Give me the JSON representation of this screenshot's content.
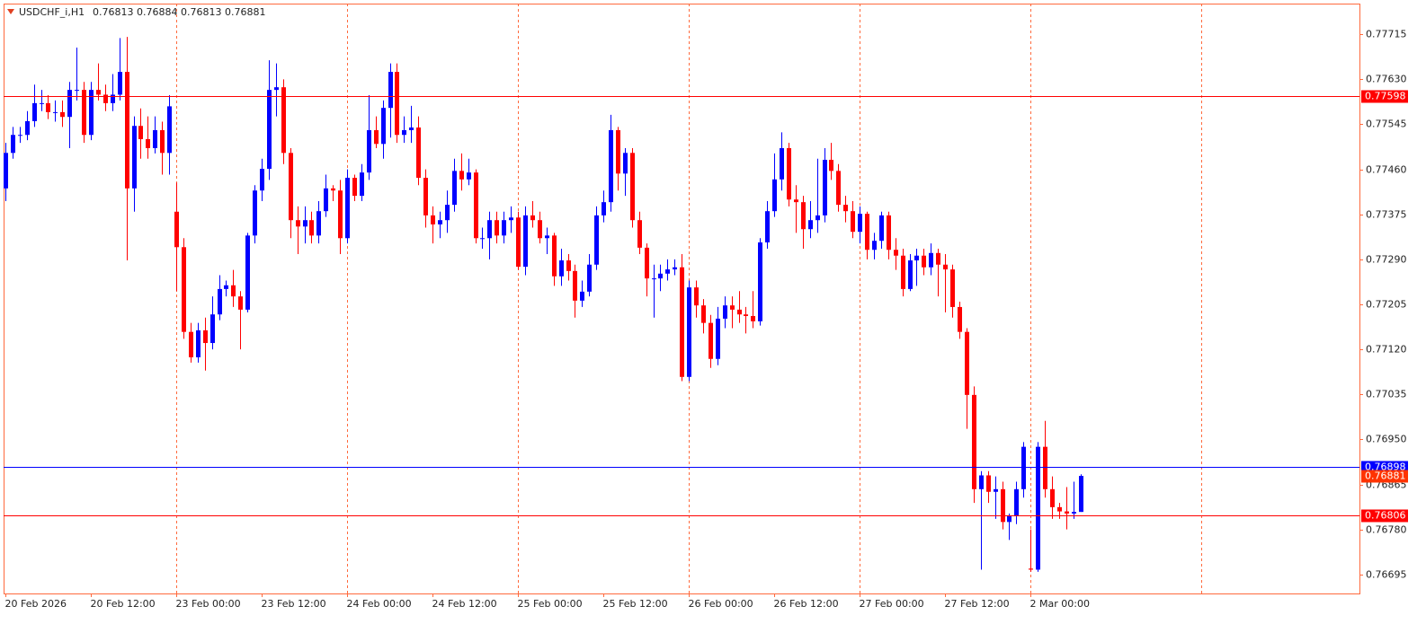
{
  "chart_data": {
    "type": "candlestick",
    "title": "USDCHF_i,H1",
    "bull_color": "#0000ff",
    "bear_color": "#ff0000",
    "frame_color": "#ff6a3d",
    "ylim": [
      0.76659,
      0.77773
    ],
    "yticks": [
      {
        "value": 0.77715,
        "label": "0.77715"
      },
      {
        "value": 0.7763,
        "label": "0.77630"
      },
      {
        "value": 0.77545,
        "label": "0.77545"
      },
      {
        "value": 0.7746,
        "label": "0.77460"
      },
      {
        "value": 0.77375,
        "label": "0.77375"
      },
      {
        "value": 0.7729,
        "label": "0.77290"
      },
      {
        "value": 0.77205,
        "label": "0.77205"
      },
      {
        "value": 0.7712,
        "label": "0.77120"
      },
      {
        "value": 0.77035,
        "label": "0.77035"
      },
      {
        "value": 0.7695,
        "label": "0.76950"
      },
      {
        "value": 0.76865,
        "label": "0.76865"
      },
      {
        "value": 0.7678,
        "label": "0.76780"
      },
      {
        "value": 0.76695,
        "label": "0.76695"
      }
    ],
    "xlim": [
      -0.25,
      190.2
    ],
    "xticks": [
      {
        "value": 0,
        "label": "20 Feb 2026"
      },
      {
        "value": 12,
        "label": "20 Feb 12:00"
      },
      {
        "value": 24,
        "label": "23 Feb 00:00"
      },
      {
        "value": 36,
        "label": "23 Feb 12:00"
      },
      {
        "value": 48,
        "label": "24 Feb 00:00"
      },
      {
        "value": 60,
        "label": "24 Feb 12:00"
      },
      {
        "value": 72,
        "label": "25 Feb 00:00"
      },
      {
        "value": 84,
        "label": "25 Feb 12:00"
      },
      {
        "value": 96,
        "label": "26 Feb 00:00"
      },
      {
        "value": 108,
        "label": "26 Feb 12:00"
      },
      {
        "value": 120,
        "label": "27 Feb 00:00"
      },
      {
        "value": 132,
        "label": "27 Feb 12:00"
      },
      {
        "value": 144,
        "label": "2 Mar 00:00"
      }
    ],
    "period_separators": [
      24,
      48,
      72,
      96,
      120,
      144,
      168
    ],
    "levels": [
      {
        "value": 0.77598,
        "color": "#ff0000"
      },
      {
        "value": 0.76898,
        "color": "#0000ff"
      },
      {
        "value": 0.76806,
        "color": "#ff0000"
      }
    ],
    "bid_color": "#ff3300",
    "candles": [
      [
        0.77424,
        0.7751,
        0.774,
        0.77491
      ],
      [
        0.77491,
        0.7754,
        0.7748,
        0.77525
      ],
      [
        0.77525,
        0.7754,
        0.7751,
        0.77525
      ],
      [
        0.77525,
        0.7757,
        0.77515,
        0.77551
      ],
      [
        0.77551,
        0.7762,
        0.7754,
        0.77585
      ],
      [
        0.77585,
        0.7761,
        0.7757,
        0.77585
      ],
      [
        0.77585,
        0.776,
        0.77555,
        0.77568
      ],
      [
        0.77568,
        0.7759,
        0.7755,
        0.77568
      ],
      [
        0.77568,
        0.7759,
        0.7754,
        0.77559
      ],
      [
        0.77559,
        0.77625,
        0.775,
        0.7761
      ],
      [
        0.7761,
        0.7769,
        0.7759,
        0.7761
      ],
      [
        0.7761,
        0.77625,
        0.7751,
        0.77525
      ],
      [
        0.77525,
        0.77625,
        0.77515,
        0.7761
      ],
      [
        0.7761,
        0.7766,
        0.7759,
        0.77601
      ],
      [
        0.77601,
        0.7762,
        0.7757,
        0.77585
      ],
      [
        0.77585,
        0.7764,
        0.7757,
        0.77601
      ],
      [
        0.77601,
        0.77708,
        0.7759,
        0.77644
      ],
      [
        0.77644,
        0.7771,
        0.77288,
        0.77424
      ],
      [
        0.77424,
        0.7756,
        0.7738,
        0.77542
      ],
      [
        0.77542,
        0.77575,
        0.7748,
        0.77517
      ],
      [
        0.77517,
        0.7756,
        0.7748,
        0.775
      ],
      [
        0.775,
        0.7756,
        0.7749,
        0.77534
      ],
      [
        0.77534,
        0.7755,
        0.7745,
        0.77491
      ],
      [
        0.77491,
        0.776,
        0.7745,
        0.77579
      ],
      [
        0.7738,
        0.77435,
        0.7723,
        0.77313
      ],
      [
        0.77313,
        0.7733,
        0.7714,
        0.77153
      ],
      [
        0.77153,
        0.7717,
        0.77095,
        0.77105
      ],
      [
        0.77105,
        0.7717,
        0.77095,
        0.77156
      ],
      [
        0.77156,
        0.7718,
        0.7708,
        0.77132
      ],
      [
        0.77132,
        0.7722,
        0.7712,
        0.77186
      ],
      [
        0.77186,
        0.7726,
        0.77175,
        0.77234
      ],
      [
        0.77234,
        0.7725,
        0.7722,
        0.77241
      ],
      [
        0.77241,
        0.7727,
        0.772,
        0.7722
      ],
      [
        0.7722,
        0.7723,
        0.7712,
        0.77195
      ],
      [
        0.77195,
        0.7734,
        0.7719,
        0.77335
      ],
      [
        0.77335,
        0.7743,
        0.7732,
        0.7742
      ],
      [
        0.7742,
        0.7748,
        0.774,
        0.77461
      ],
      [
        0.77461,
        0.77666,
        0.7744,
        0.7761
      ],
      [
        0.7761,
        0.7766,
        0.7756,
        0.77615
      ],
      [
        0.77615,
        0.7763,
        0.7747,
        0.77491
      ],
      [
        0.77491,
        0.775,
        0.7733,
        0.77364
      ],
      [
        0.77364,
        0.7739,
        0.773,
        0.77352
      ],
      [
        0.77352,
        0.7739,
        0.7732,
        0.77364
      ],
      [
        0.77364,
        0.7738,
        0.7732,
        0.77335
      ],
      [
        0.77335,
        0.774,
        0.7732,
        0.77381
      ],
      [
        0.77381,
        0.7745,
        0.7737,
        0.77424
      ],
      [
        0.77424,
        0.7743,
        0.774,
        0.7742
      ],
      [
        0.7742,
        0.7744,
        0.773,
        0.7733
      ],
      [
        0.7733,
        0.7746,
        0.7732,
        0.77444
      ],
      [
        0.77444,
        0.7745,
        0.774,
        0.7741
      ],
      [
        0.7741,
        0.7747,
        0.774,
        0.77454
      ],
      [
        0.77454,
        0.776,
        0.7744,
        0.77534
      ],
      [
        0.77534,
        0.7756,
        0.775,
        0.77508
      ],
      [
        0.77508,
        0.7759,
        0.7748,
        0.77576
      ],
      [
        0.77576,
        0.7766,
        0.7752,
        0.77644
      ],
      [
        0.77644,
        0.7766,
        0.7751,
        0.77525
      ],
      [
        0.77525,
        0.7756,
        0.7751,
        0.77534
      ],
      [
        0.77534,
        0.7758,
        0.7751,
        0.77539
      ],
      [
        0.77539,
        0.7756,
        0.7743,
        0.77444
      ],
      [
        0.77444,
        0.7746,
        0.7735,
        0.77373
      ],
      [
        0.77373,
        0.7739,
        0.7732,
        0.77356
      ],
      [
        0.77356,
        0.7738,
        0.7733,
        0.77364
      ],
      [
        0.77364,
        0.7742,
        0.7734,
        0.77393
      ],
      [
        0.77393,
        0.7748,
        0.7738,
        0.77457
      ],
      [
        0.77457,
        0.7749,
        0.7742,
        0.77441
      ],
      [
        0.77441,
        0.7748,
        0.7743,
        0.77454
      ],
      [
        0.77454,
        0.7746,
        0.7732,
        0.7733
      ],
      [
        0.7733,
        0.7735,
        0.7731,
        0.7733
      ],
      [
        0.7733,
        0.7738,
        0.7729,
        0.77364
      ],
      [
        0.77364,
        0.7738,
        0.7732,
        0.77335
      ],
      [
        0.77335,
        0.7738,
        0.7732,
        0.77364
      ],
      [
        0.77364,
        0.7739,
        0.7734,
        0.77369
      ],
      [
        0.77369,
        0.7738,
        0.7727,
        0.77276
      ],
      [
        0.77276,
        0.7739,
        0.7726,
        0.77373
      ],
      [
        0.77373,
        0.774,
        0.7735,
        0.77364
      ],
      [
        0.77364,
        0.7738,
        0.7732,
        0.7733
      ],
      [
        0.7733,
        0.7735,
        0.773,
        0.77335
      ],
      [
        0.77335,
        0.7734,
        0.7724,
        0.77258
      ],
      [
        0.77258,
        0.7731,
        0.7724,
        0.77288
      ],
      [
        0.77288,
        0.773,
        0.7725,
        0.77268
      ],
      [
        0.77268,
        0.7728,
        0.7718,
        0.77212
      ],
      [
        0.77212,
        0.7725,
        0.772,
        0.77229
      ],
      [
        0.77229,
        0.773,
        0.7722,
        0.7728
      ],
      [
        0.7728,
        0.7739,
        0.7727,
        0.77373
      ],
      [
        0.77373,
        0.7742,
        0.7736,
        0.77398
      ],
      [
        0.77398,
        0.77563,
        0.7738,
        0.77534
      ],
      [
        0.77534,
        0.7754,
        0.7742,
        0.77452
      ],
      [
        0.77452,
        0.775,
        0.7741,
        0.77491
      ],
      [
        0.77491,
        0.775,
        0.7735,
        0.77364
      ],
      [
        0.77364,
        0.7738,
        0.773,
        0.77312
      ],
      [
        0.77312,
        0.7732,
        0.7722,
        0.77254
      ],
      [
        0.77254,
        0.7728,
        0.7718,
        0.77254
      ],
      [
        0.77254,
        0.7728,
        0.7723,
        0.77263
      ],
      [
        0.77263,
        0.7729,
        0.7725,
        0.77271
      ],
      [
        0.77271,
        0.7729,
        0.7726,
        0.77275
      ],
      [
        0.77275,
        0.773,
        0.7706,
        0.77068
      ],
      [
        0.77068,
        0.7725,
        0.7706,
        0.77237
      ],
      [
        0.77237,
        0.7725,
        0.7718,
        0.77203
      ],
      [
        0.77203,
        0.77215,
        0.7715,
        0.7717
      ],
      [
        0.7717,
        0.77185,
        0.77085,
        0.77102
      ],
      [
        0.77102,
        0.772,
        0.7709,
        0.77178
      ],
      [
        0.77178,
        0.7722,
        0.7716,
        0.77203
      ],
      [
        0.77203,
        0.7722,
        0.7716,
        0.77195
      ],
      [
        0.77195,
        0.7723,
        0.7717,
        0.77186
      ],
      [
        0.77186,
        0.772,
        0.7715,
        0.77183
      ],
      [
        0.77183,
        0.7723,
        0.7716,
        0.77173
      ],
      [
        0.77173,
        0.7733,
        0.77165,
        0.77322
      ],
      [
        0.77322,
        0.774,
        0.7731,
        0.77381
      ],
      [
        0.77381,
        0.7749,
        0.7737,
        0.77441
      ],
      [
        0.77441,
        0.7753,
        0.7742,
        0.775
      ],
      [
        0.775,
        0.7751,
        0.7739,
        0.77403
      ],
      [
        0.77403,
        0.7743,
        0.7734,
        0.77398
      ],
      [
        0.77398,
        0.7741,
        0.7731,
        0.77347
      ],
      [
        0.77347,
        0.774,
        0.7733,
        0.77364
      ],
      [
        0.77364,
        0.7748,
        0.7734,
        0.77373
      ],
      [
        0.77373,
        0.775,
        0.7736,
        0.77478
      ],
      [
        0.77478,
        0.7751,
        0.7744,
        0.77457
      ],
      [
        0.77457,
        0.7747,
        0.7738,
        0.77393
      ],
      [
        0.77393,
        0.7741,
        0.7736,
        0.77381
      ],
      [
        0.77381,
        0.774,
        0.7733,
        0.77342
      ],
      [
        0.77342,
        0.7739,
        0.7732,
        0.77376
      ],
      [
        0.77376,
        0.7738,
        0.7729,
        0.77308
      ],
      [
        0.77308,
        0.7734,
        0.7729,
        0.77325
      ],
      [
        0.77325,
        0.7738,
        0.7731,
        0.77373
      ],
      [
        0.77373,
        0.7738,
        0.7729,
        0.77308
      ],
      [
        0.77308,
        0.7733,
        0.7727,
        0.77297
      ],
      [
        0.77297,
        0.7731,
        0.7722,
        0.77234
      ],
      [
        0.77234,
        0.773,
        0.7723,
        0.77288
      ],
      [
        0.77288,
        0.7731,
        0.7724,
        0.77297
      ],
      [
        0.77297,
        0.7731,
        0.7726,
        0.77275
      ],
      [
        0.77275,
        0.7732,
        0.7726,
        0.77302
      ],
      [
        0.77302,
        0.7731,
        0.7722,
        0.7728
      ],
      [
        0.7728,
        0.773,
        0.7719,
        0.77271
      ],
      [
        0.77271,
        0.7728,
        0.7718,
        0.772
      ],
      [
        0.772,
        0.7721,
        0.7714,
        0.77153
      ],
      [
        0.77153,
        0.7716,
        0.7697,
        0.77034
      ],
      [
        0.77034,
        0.7705,
        0.7683,
        0.76856
      ],
      [
        0.76856,
        0.7689,
        0.76704,
        0.76882
      ],
      [
        0.76882,
        0.7689,
        0.7683,
        0.76851
      ],
      [
        0.76851,
        0.7688,
        0.768,
        0.76856
      ],
      [
        0.76856,
        0.7687,
        0.7678,
        0.76794
      ],
      [
        0.76794,
        0.7681,
        0.7676,
        0.76805
      ],
      [
        0.76805,
        0.7687,
        0.7679,
        0.76856
      ],
      [
        0.76856,
        0.76945,
        0.7684,
        0.76936
      ],
      [
        0.76706,
        0.7678,
        0.767,
        0.76704
      ],
      [
        0.76704,
        0.76945,
        0.767,
        0.76936
      ],
      [
        0.76936,
        0.76985,
        0.7684,
        0.76856
      ],
      [
        0.76856,
        0.7688,
        0.768,
        0.76822
      ],
      [
        0.76822,
        0.7683,
        0.768,
        0.76814
      ],
      [
        0.76814,
        0.7686,
        0.7678,
        0.7681
      ],
      [
        0.7681,
        0.7687,
        0.768,
        0.76813
      ],
      [
        0.76813,
        0.76884,
        0.76813,
        0.76881
      ]
    ]
  }
}
